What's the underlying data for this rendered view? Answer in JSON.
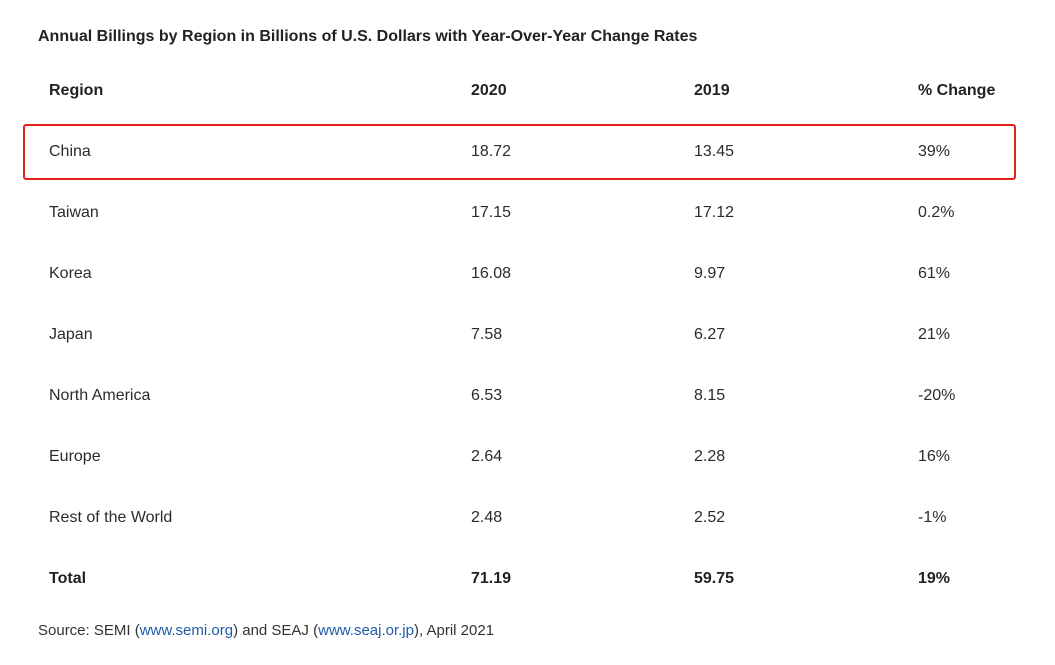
{
  "title": "Annual Billings by Region in Billions of U.S. Dollars with Year-Over-Year Change Rates",
  "chart_data": {
    "type": "table",
    "columns": [
      "Region",
      "2020",
      "2019",
      "% Change"
    ],
    "rows": [
      [
        "China",
        "18.72",
        "13.45",
        "39%"
      ],
      [
        "Taiwan",
        "17.15",
        "17.12",
        "0.2%"
      ],
      [
        "Korea",
        "16.08",
        "9.97",
        "61%"
      ],
      [
        "Japan",
        "7.58",
        "6.27",
        "21%"
      ],
      [
        "North America",
        "6.53",
        "8.15",
        "-20%"
      ],
      [
        "Europe",
        "2.64",
        "2.28",
        "16%"
      ],
      [
        "Rest of the World",
        "2.48",
        "2.52",
        "-1%"
      ]
    ],
    "total": [
      "Total",
      "71.19",
      "59.75",
      "19%"
    ],
    "highlighted_row": "China",
    "highlight_color": "#e3221c"
  },
  "source": {
    "prefix": "Source: SEMI (",
    "link1": "www.semi.org",
    "middle": ") and SEAJ (",
    "link2": "www.seaj.or.jp",
    "suffix": "), April 2021"
  },
  "colors": {
    "link": "#1f5bab",
    "highlight": "#e3221c"
  }
}
